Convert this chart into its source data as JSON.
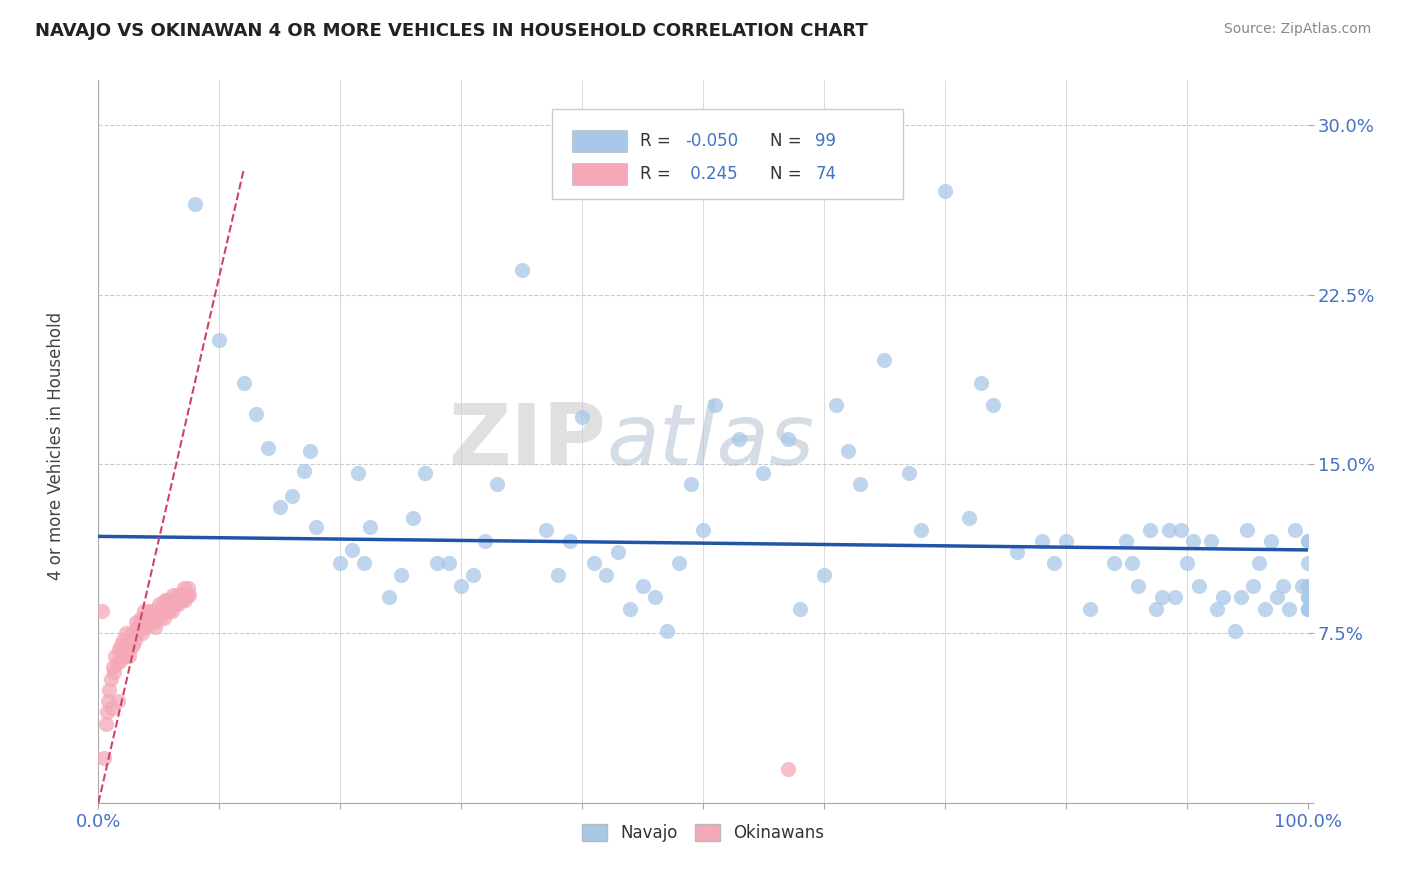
{
  "title": "NAVAJO VS OKINAWAN 4 OR MORE VEHICLES IN HOUSEHOLD CORRELATION CHART",
  "source": "Source: ZipAtlas.com",
  "ylabel": "4 or more Vehicles in Household",
  "xlim": [
    0.0,
    1.0
  ],
  "ylim": [
    0.0,
    0.32
  ],
  "xticks": [
    0.0,
    0.1,
    0.2,
    0.3,
    0.4,
    0.5,
    0.6,
    0.7,
    0.8,
    0.9,
    1.0
  ],
  "yticks": [
    0.0,
    0.075,
    0.15,
    0.225,
    0.3
  ],
  "yticklabels": [
    "",
    "7.5%",
    "15.0%",
    "22.5%",
    "30.0%"
  ],
  "navajo_color": "#a8c8e8",
  "okinawan_color": "#f4a8b8",
  "navajo_line_color": "#2255aa",
  "okinawan_line_color": "#cc4466",
  "watermark_zip": "ZIP",
  "watermark_atlas": "atlas",
  "background_color": "#ffffff",
  "grid_color": "#cccccc",
  "navajo_x": [
    0.08,
    0.1,
    0.12,
    0.13,
    0.14,
    0.15,
    0.16,
    0.17,
    0.175,
    0.18,
    0.2,
    0.21,
    0.215,
    0.22,
    0.225,
    0.24,
    0.25,
    0.26,
    0.27,
    0.28,
    0.29,
    0.3,
    0.31,
    0.32,
    0.33,
    0.35,
    0.37,
    0.38,
    0.39,
    0.4,
    0.41,
    0.42,
    0.43,
    0.44,
    0.45,
    0.46,
    0.47,
    0.48,
    0.49,
    0.5,
    0.51,
    0.53,
    0.55,
    0.57,
    0.58,
    0.6,
    0.61,
    0.62,
    0.63,
    0.65,
    0.67,
    0.68,
    0.7,
    0.72,
    0.73,
    0.74,
    0.76,
    0.78,
    0.79,
    0.8,
    0.82,
    0.84,
    0.85,
    0.855,
    0.86,
    0.87,
    0.875,
    0.88,
    0.885,
    0.89,
    0.895,
    0.9,
    0.905,
    0.91,
    0.92,
    0.925,
    0.93,
    0.94,
    0.945,
    0.95,
    0.955,
    0.96,
    0.965,
    0.97,
    0.975,
    0.98,
    0.985,
    0.99,
    0.995,
    1.0,
    1.0,
    1.0,
    1.0,
    1.0,
    1.0,
    1.0,
    1.0,
    1.0,
    1.0
  ],
  "navajo_y": [
    0.265,
    0.205,
    0.186,
    0.172,
    0.157,
    0.131,
    0.136,
    0.147,
    0.156,
    0.122,
    0.106,
    0.112,
    0.146,
    0.106,
    0.122,
    0.091,
    0.101,
    0.126,
    0.146,
    0.106,
    0.106,
    0.096,
    0.101,
    0.116,
    0.141,
    0.236,
    0.121,
    0.101,
    0.116,
    0.171,
    0.106,
    0.101,
    0.111,
    0.086,
    0.096,
    0.091,
    0.076,
    0.106,
    0.141,
    0.121,
    0.176,
    0.161,
    0.146,
    0.161,
    0.086,
    0.101,
    0.176,
    0.156,
    0.141,
    0.196,
    0.146,
    0.121,
    0.271,
    0.126,
    0.186,
    0.176,
    0.111,
    0.116,
    0.106,
    0.116,
    0.086,
    0.106,
    0.116,
    0.106,
    0.096,
    0.121,
    0.086,
    0.091,
    0.121,
    0.091,
    0.121,
    0.106,
    0.116,
    0.096,
    0.116,
    0.086,
    0.091,
    0.076,
    0.091,
    0.121,
    0.096,
    0.106,
    0.086,
    0.116,
    0.091,
    0.096,
    0.086,
    0.121,
    0.096,
    0.116,
    0.086,
    0.106,
    0.091,
    0.096,
    0.086,
    0.116,
    0.091,
    0.096,
    0.086
  ],
  "okinawan_x": [
    0.003,
    0.005,
    0.006,
    0.007,
    0.008,
    0.009,
    0.01,
    0.011,
    0.012,
    0.013,
    0.014,
    0.015,
    0.016,
    0.017,
    0.018,
    0.019,
    0.02,
    0.021,
    0.022,
    0.023,
    0.024,
    0.025,
    0.026,
    0.027,
    0.028,
    0.029,
    0.03,
    0.031,
    0.032,
    0.033,
    0.034,
    0.035,
    0.036,
    0.037,
    0.038,
    0.039,
    0.04,
    0.041,
    0.042,
    0.043,
    0.044,
    0.045,
    0.046,
    0.047,
    0.048,
    0.049,
    0.05,
    0.051,
    0.052,
    0.053,
    0.054,
    0.055,
    0.056,
    0.057,
    0.058,
    0.059,
    0.06,
    0.061,
    0.062,
    0.063,
    0.064,
    0.065,
    0.066,
    0.067,
    0.068,
    0.069,
    0.07,
    0.071,
    0.072,
    0.073,
    0.074,
    0.075,
    0.055,
    0.57
  ],
  "okinawan_y": [
    0.085,
    0.02,
    0.035,
    0.04,
    0.045,
    0.05,
    0.055,
    0.042,
    0.06,
    0.058,
    0.065,
    0.062,
    0.045,
    0.068,
    0.063,
    0.07,
    0.072,
    0.068,
    0.065,
    0.075,
    0.07,
    0.065,
    0.068,
    0.072,
    0.075,
    0.07,
    0.072,
    0.08,
    0.075,
    0.078,
    0.08,
    0.082,
    0.075,
    0.08,
    0.085,
    0.078,
    0.08,
    0.082,
    0.085,
    0.08,
    0.082,
    0.085,
    0.08,
    0.078,
    0.082,
    0.085,
    0.088,
    0.082,
    0.085,
    0.088,
    0.082,
    0.085,
    0.088,
    0.09,
    0.085,
    0.088,
    0.09,
    0.085,
    0.092,
    0.088,
    0.09,
    0.092,
    0.088,
    0.09,
    0.092,
    0.09,
    0.092,
    0.095,
    0.09,
    0.092,
    0.095,
    0.092,
    0.09,
    0.015
  ],
  "navajo_line_x": [
    0.0,
    1.0
  ],
  "navajo_line_y": [
    0.118,
    0.112
  ],
  "okinawan_line_x": [
    0.0,
    0.12
  ],
  "okinawan_line_y": [
    0.0,
    0.28
  ]
}
